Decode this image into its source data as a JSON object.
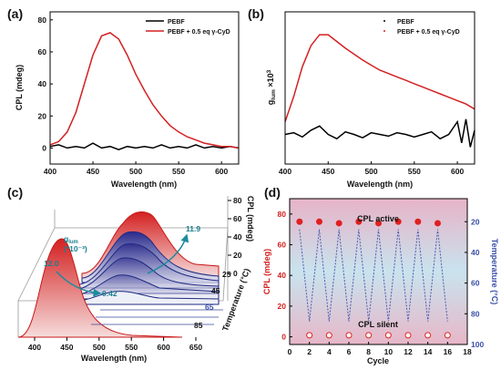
{
  "chart_data": [
    {
      "panel": "(a)",
      "type": "line",
      "xlabel": "Wavelength (nm)",
      "ylabel": "CPL (mdeg)",
      "xlim": [
        400,
        620
      ],
      "ylim": [
        -10,
        85
      ],
      "xticks": [
        400,
        450,
        500,
        550,
        600
      ],
      "yticks": [
        0,
        20,
        40,
        60,
        80
      ],
      "legend_position": "top-right",
      "series": [
        {
          "name": "PEBF",
          "color": "#000000",
          "x": [
            400,
            410,
            420,
            430,
            440,
            450,
            460,
            470,
            480,
            490,
            500,
            510,
            520,
            530,
            540,
            550,
            560,
            570,
            580,
            590,
            600,
            610,
            620
          ],
          "y": [
            1,
            2,
            0,
            1,
            0,
            3,
            0,
            1,
            -1,
            1,
            0,
            1,
            0,
            2,
            0,
            1,
            0,
            2,
            0,
            1,
            0,
            1,
            0
          ]
        },
        {
          "name": "PEBF + 0.5 eq γ-CyD",
          "color": "#d42020",
          "x": [
            400,
            410,
            420,
            430,
            440,
            450,
            460,
            470,
            480,
            490,
            500,
            510,
            520,
            530,
            540,
            550,
            560,
            570,
            580,
            590,
            600,
            610,
            620
          ],
          "y": [
            2,
            4,
            10,
            22,
            40,
            58,
            70,
            72,
            68,
            58,
            46,
            36,
            27,
            20,
            14,
            10,
            7,
            5,
            3,
            2,
            1,
            1,
            0
          ]
        }
      ]
    },
    {
      "panel": "(b)",
      "type": "line",
      "xlabel": "Wavelength (nm)",
      "ylabel": "g",
      "ylabel_sub": "lum",
      "ylabel_tail": " ×10",
      "ylabel_sup": "3",
      "xlim": [
        400,
        620
      ],
      "ylim": [
        -0.35,
        1.45
      ],
      "xticks": [
        400,
        450,
        500,
        550,
        600
      ],
      "legend_position": "top-right",
      "series": [
        {
          "name": "PEBF",
          "color": "#000000",
          "x": [
            400,
            410,
            420,
            430,
            440,
            450,
            460,
            470,
            480,
            490,
            500,
            510,
            520,
            530,
            540,
            550,
            560,
            570,
            580,
            590,
            600,
            605,
            610,
            615,
            620
          ],
          "y": [
            0.0,
            0.02,
            -0.03,
            0.05,
            0.1,
            0.0,
            -0.05,
            0.03,
            0.0,
            -0.04,
            0.02,
            0.0,
            -0.02,
            0.02,
            0.0,
            -0.03,
            0.0,
            0.03,
            -0.05,
            0.0,
            0.15,
            -0.1,
            0.18,
            -0.15,
            0.05
          ]
        },
        {
          "name": "PEBF + 0.5 eq γ-CyD",
          "color": "#d42020",
          "x": [
            400,
            410,
            420,
            430,
            440,
            450,
            460,
            470,
            480,
            490,
            500,
            510,
            520,
            530,
            540,
            550,
            560,
            570,
            580,
            590,
            600,
            610,
            620
          ],
          "y": [
            0.15,
            0.45,
            0.8,
            1.05,
            1.18,
            1.18,
            1.1,
            1.02,
            0.95,
            0.88,
            0.82,
            0.76,
            0.72,
            0.68,
            0.64,
            0.6,
            0.56,
            0.52,
            0.48,
            0.44,
            0.4,
            0.36,
            0.3
          ]
        }
      ]
    },
    {
      "panel": "(c)",
      "type": "line",
      "xlabel": "Wavelength (nm)",
      "zlabel": "CPL (mdeg)",
      "ylabel": "Temperature (°C)",
      "xticks": [
        400,
        450,
        500,
        550,
        600,
        650
      ],
      "zticks": [
        0,
        20,
        40,
        60,
        80
      ],
      "temperature_ticks": [
        25,
        45,
        65,
        85
      ],
      "glum_label": "g",
      "glum_sub": "lum",
      "glum_unit": "(*10⁻³)",
      "annotations": [
        "11.9",
        "12.0",
        "0.42"
      ],
      "series": [
        {
          "name": "25 °C",
          "values": [
            70
          ]
        },
        {
          "name": "85 °C",
          "values": [
            2
          ]
        }
      ]
    },
    {
      "panel": "(d)",
      "type": "line",
      "xlabel": "Cycle",
      "ylabel": "CPL (mdeg)",
      "ylabel_right": "Temperature (°C)",
      "xlim": [
        0,
        18
      ],
      "xticks": [
        0,
        2,
        4,
        6,
        8,
        10,
        12,
        14,
        16,
        18
      ],
      "ylim_left": [
        -5,
        90
      ],
      "yticks_left": [
        0,
        20,
        40,
        60,
        80
      ],
      "ylim_right": [
        100,
        5
      ],
      "yticks_right": [
        20,
        40,
        60,
        80,
        100
      ],
      "annotations": [
        "CPL active",
        "CPL silent"
      ],
      "series": [
        {
          "name": "CPL",
          "color": "#e02020",
          "x": [
            1,
            2,
            3,
            4,
            5,
            6,
            7,
            8,
            9,
            10,
            11,
            12,
            13,
            14,
            15,
            16
          ],
          "y": [
            75,
            1,
            75,
            1,
            74,
            1,
            75,
            1,
            74,
            1,
            75,
            1,
            75,
            1,
            74,
            1
          ]
        },
        {
          "name": "Temperature",
          "color": "#4a5db0",
          "x": [
            1,
            2,
            3,
            4,
            5,
            6,
            7,
            8,
            9,
            10,
            11,
            12,
            13,
            14,
            15,
            16
          ],
          "y": [
            25,
            85,
            25,
            85,
            25,
            85,
            25,
            85,
            25,
            85,
            25,
            85,
            25,
            85,
            25,
            85
          ]
        }
      ]
    }
  ]
}
